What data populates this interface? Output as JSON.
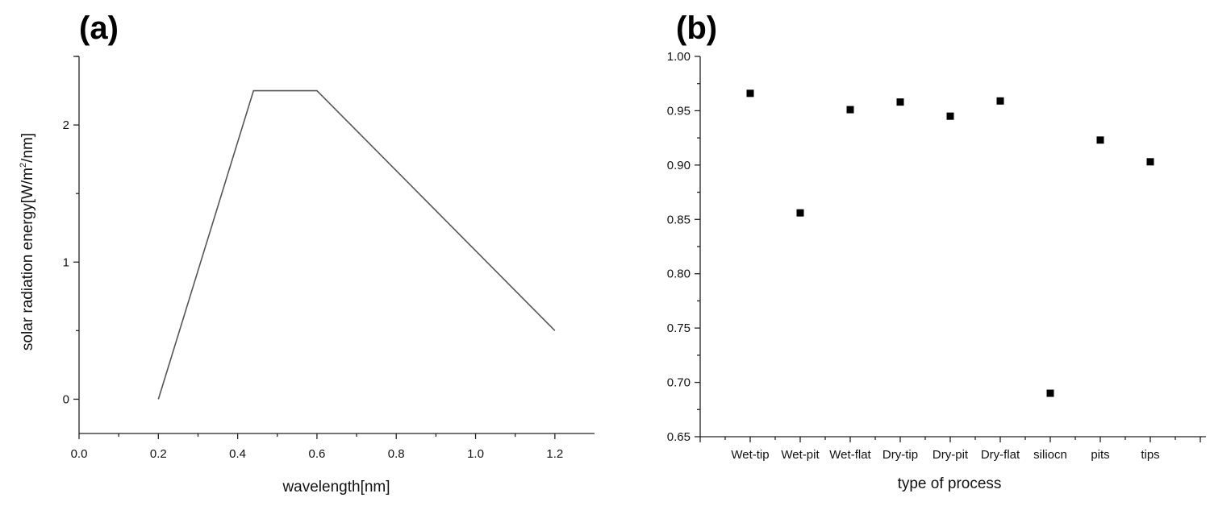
{
  "panels": {
    "a": {
      "label": "(a)"
    },
    "b": {
      "label": "(b)"
    }
  },
  "chart_data": [
    {
      "type": "line",
      "panel": "(a)",
      "title": "",
      "xlabel": "wavelength[nm]",
      "ylabel_main": "solar radiation energy[W/m",
      "ylabel_sup": "2",
      "ylabel_end": "/nm]",
      "xlim": [
        0.0,
        1.3
      ],
      "ylim": [
        -0.25,
        2.5
      ],
      "x_ticks": [
        0.0,
        0.2,
        0.4,
        0.6,
        0.8,
        1.0,
        1.2
      ],
      "x_tick_labels": [
        "0.0",
        "0.2",
        "0.4",
        "0.6",
        "0.8",
        "1.0",
        "1.2"
      ],
      "y_ticks": [
        0,
        1,
        2
      ],
      "y_tick_labels": [
        "0",
        "1",
        "2"
      ],
      "grid": false,
      "series": [
        {
          "x": [
            0.2,
            0.44,
            0.6,
            1.2
          ],
          "y": [
            0.0,
            2.25,
            2.25,
            0.5
          ]
        }
      ],
      "line_color": "#555555"
    },
    {
      "type": "scatter",
      "panel": "(b)",
      "title": "",
      "xlabel": "type of process",
      "ylabel": "",
      "ylim": [
        0.65,
        1.0
      ],
      "y_ticks": [
        0.65,
        0.7,
        0.75,
        0.8,
        0.85,
        0.9,
        0.95,
        1.0
      ],
      "y_tick_labels": [
        "0.65",
        "0.70",
        "0.75",
        "0.80",
        "0.85",
        "0.90",
        "0.95",
        "1.00"
      ],
      "categories": [
        "Wet-tip",
        "Wet-pit",
        "Wet-flat",
        "Dry-tip",
        "Dry-pit",
        "Dry-flat",
        "siliocn",
        "pits",
        "tips"
      ],
      "values": [
        0.966,
        0.856,
        0.951,
        0.958,
        0.945,
        0.959,
        0.69,
        0.923,
        0.903
      ],
      "grid": false,
      "marker": "square",
      "marker_color": "#000000"
    }
  ]
}
